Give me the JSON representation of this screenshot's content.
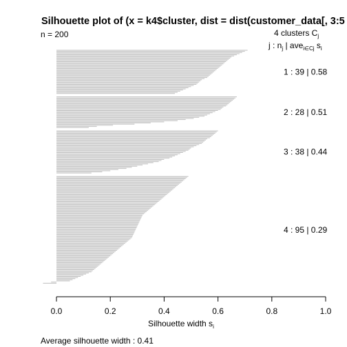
{
  "chart_data": {
    "type": "bar",
    "orientation": "horizontal",
    "title": "Silhouette plot of (x = k4$cluster, dist = dist(customer_data[, 3:5",
    "n_label": "n = 200",
    "legend_header": "4  clusters  C",
    "legend_header_sub": "j",
    "legend_subheader": "j :  n",
    "legend_subheader_nsub": "j",
    "legend_subheader_ave": " | ave",
    "legend_subheader_avesub": "i∈Cj",
    "legend_subheader_s": "  s",
    "legend_subheader_ssub": "i",
    "xlabel": "Silhouette width s",
    "xlabel_sub": "i",
    "xlim": [
      0,
      1
    ],
    "x_ticks": [
      0,
      0.2,
      0.4,
      0.6,
      0.8,
      1
    ],
    "x_tick_labels": [
      "0.0",
      "0.2",
      "0.4",
      "0.6",
      "0.8",
      "1.0"
    ],
    "footer": "Average silhouette width :  0.41",
    "bar_color": "#bebebe",
    "clusters": [
      {
        "id": 1,
        "n": 39,
        "ave": 0.58,
        "label": "1 :   39  |  0.58",
        "values": [
          0.71,
          0.7,
          0.69,
          0.68,
          0.67,
          0.66,
          0.65,
          0.645,
          0.64,
          0.635,
          0.63,
          0.625,
          0.62,
          0.615,
          0.61,
          0.605,
          0.6,
          0.595,
          0.59,
          0.585,
          0.58,
          0.575,
          0.57,
          0.565,
          0.56,
          0.55,
          0.54,
          0.535,
          0.53,
          0.525,
          0.52,
          0.51,
          0.5,
          0.49,
          0.48,
          0.47,
          0.46,
          0.45,
          0.44
        ]
      },
      {
        "id": 2,
        "n": 28,
        "ave": 0.51,
        "label": "2 :   28  |  0.51",
        "values": [
          0.67,
          0.665,
          0.66,
          0.655,
          0.65,
          0.645,
          0.64,
          0.635,
          0.63,
          0.62,
          0.615,
          0.61,
          0.6,
          0.59,
          0.58,
          0.57,
          0.56,
          0.55,
          0.53,
          0.51,
          0.48,
          0.45,
          0.4,
          0.35,
          0.29,
          0.21,
          0.15,
          0.12
        ]
      },
      {
        "id": 3,
        "n": 38,
        "ave": 0.44,
        "label": "3 :   38  |  0.44",
        "values": [
          0.6,
          0.595,
          0.59,
          0.585,
          0.58,
          0.575,
          0.57,
          0.56,
          0.555,
          0.55,
          0.545,
          0.54,
          0.53,
          0.52,
          0.51,
          0.5,
          0.495,
          0.49,
          0.48,
          0.47,
          0.46,
          0.45,
          0.44,
          0.43,
          0.42,
          0.4,
          0.39,
          0.38,
          0.36,
          0.34,
          0.32,
          0.3,
          0.28,
          0.26,
          0.23,
          0.2,
          0.17,
          0.13
        ]
      },
      {
        "id": 4,
        "n": 95,
        "ave": 0.29,
        "label": "4 :   95  |  0.29",
        "values": [
          0.49,
          0.485,
          0.48,
          0.475,
          0.47,
          0.465,
          0.46,
          0.455,
          0.45,
          0.445,
          0.44,
          0.435,
          0.43,
          0.425,
          0.42,
          0.415,
          0.41,
          0.405,
          0.4,
          0.395,
          0.39,
          0.385,
          0.38,
          0.375,
          0.37,
          0.365,
          0.36,
          0.355,
          0.35,
          0.345,
          0.34,
          0.335,
          0.33,
          0.325,
          0.32,
          0.318,
          0.316,
          0.314,
          0.312,
          0.31,
          0.308,
          0.306,
          0.304,
          0.302,
          0.3,
          0.298,
          0.296,
          0.294,
          0.292,
          0.29,
          0.288,
          0.286,
          0.284,
          0.282,
          0.28,
          0.275,
          0.27,
          0.265,
          0.26,
          0.255,
          0.25,
          0.245,
          0.24,
          0.235,
          0.23,
          0.225,
          0.22,
          0.215,
          0.21,
          0.205,
          0.2,
          0.195,
          0.19,
          0.185,
          0.18,
          0.175,
          0.17,
          0.165,
          0.16,
          0.155,
          0.15,
          0.145,
          0.14,
          0.135,
          0.13,
          0.12,
          0.11,
          0.1,
          0.09,
          0.08,
          0.07,
          0.06,
          0.05,
          -0.02,
          -0.05
        ]
      }
    ]
  }
}
